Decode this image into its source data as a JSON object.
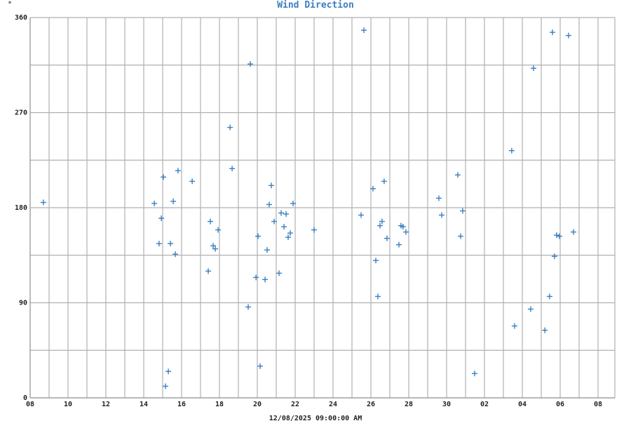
{
  "chart_data": {
    "type": "scatter",
    "title": "Wind Direction",
    "ylabel": "°",
    "xlabel": "12/08/2025 09:00:00 AM",
    "ylim": [
      0,
      360
    ],
    "yticks": [
      0,
      90,
      180,
      270,
      360
    ],
    "y_grid_step": 45,
    "xlim_hours": [
      8,
      38.9
    ],
    "x_grid_step_hours": 1,
    "xtick_labels": [
      "08",
      "10",
      "12",
      "14",
      "16",
      "18",
      "20",
      "22",
      "24",
      "26",
      "28",
      "30",
      "02",
      "04",
      "06",
      "08"
    ],
    "grid": true,
    "marker": "plus",
    "marker_color": "#3a7fc1",
    "grid_color": "#b0b0b0",
    "x": [
      8.7,
      14.56,
      14.81,
      14.93,
      15.04,
      15.15,
      15.3,
      15.41,
      15.56,
      15.67,
      15.81,
      16.56,
      17.41,
      17.52,
      17.67,
      17.78,
      17.93,
      18.56,
      18.67,
      19.52,
      19.63,
      19.93,
      20.04,
      20.15,
      20.41,
      20.52,
      20.63,
      20.74,
      20.89,
      21.15,
      21.26,
      21.41,
      21.52,
      21.63,
      21.74,
      21.89,
      23.0,
      25.48,
      25.63,
      26.11,
      26.26,
      26.37,
      26.48,
      26.59,
      26.7,
      26.85,
      27.48,
      27.59,
      27.7,
      27.85,
      29.59,
      29.74,
      30.59,
      30.74,
      30.85,
      31.48,
      33.44,
      33.59,
      34.44,
      34.59,
      35.19,
      35.44,
      35.59,
      35.7,
      35.81,
      35.96,
      36.44,
      36.7
    ],
    "y": [
      185,
      184,
      146,
      170,
      209,
      11,
      25,
      146,
      186,
      136,
      215,
      205,
      120,
      167,
      144,
      141,
      159,
      256,
      217,
      86,
      316,
      114,
      153,
      30,
      112,
      140,
      183,
      201,
      167,
      118,
      175,
      162,
      174,
      152,
      156,
      184,
      159,
      173,
      348,
      198,
      130,
      96,
      163,
      167,
      205,
      151,
      145,
      163,
      162,
      157,
      189,
      173,
      211,
      153,
      177,
      23,
      234,
      68,
      84,
      312,
      64,
      96,
      346,
      134,
      154,
      153,
      343,
      157
    ]
  }
}
